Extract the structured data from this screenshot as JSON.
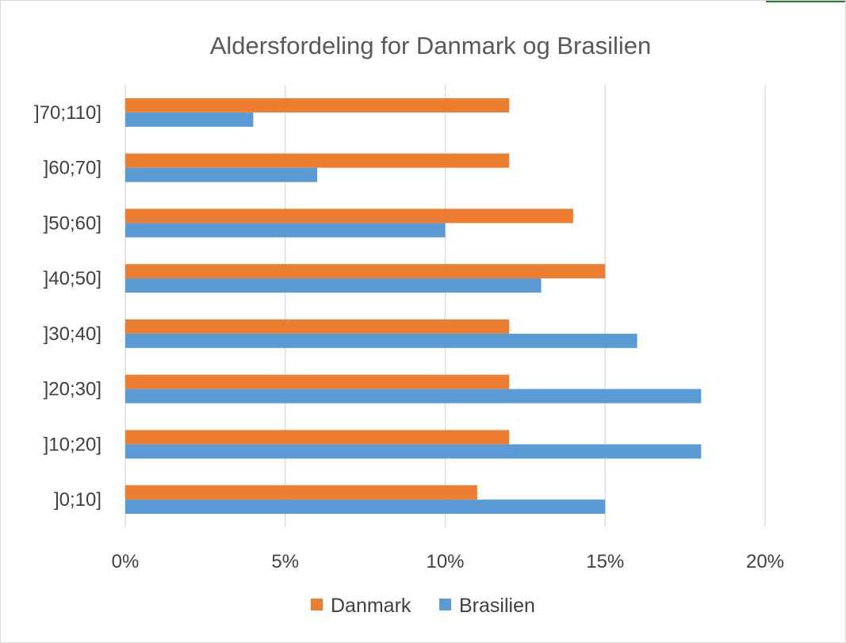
{
  "chart_data": {
    "type": "bar",
    "orientation": "horizontal",
    "title": "Aldersfordeling for Danmark og Brasilien",
    "categories": [
      "]0;10]",
      "]10;20]",
      "]20;30]",
      "]30;40]",
      "]40;50]",
      "]50;60]",
      "]60;70]",
      "]70;110]"
    ],
    "series": [
      {
        "name": "Danmark",
        "color": "#ed7d31",
        "values": [
          11,
          12,
          12,
          12,
          15,
          14,
          12,
          12
        ]
      },
      {
        "name": "Brasilien",
        "color": "#5b9bd5",
        "values": [
          15,
          18,
          18,
          16,
          13,
          10,
          6,
          4
        ]
      }
    ],
    "xlim": [
      0,
      20
    ],
    "x_ticks": [
      0,
      5,
      10,
      15,
      20
    ],
    "x_tick_labels": [
      "0%",
      "5%",
      "10%",
      "15%",
      "20%"
    ],
    "grid": true,
    "legend_position": "bottom"
  }
}
